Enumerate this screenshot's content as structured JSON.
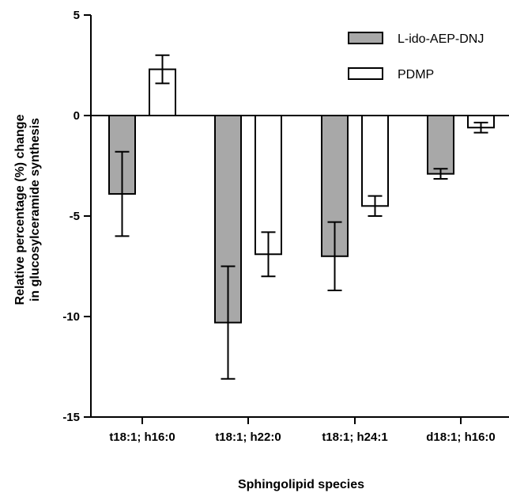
{
  "chart_data": {
    "type": "bar",
    "xlabel": "Sphingolipid species",
    "ylabel_lines": [
      "Relative percentage (%) change",
      "in glucosylceramide synthesis"
    ],
    "categories": [
      "t18:1; h16:0",
      "t18:1; h22:0",
      "t18:1; h24:1",
      "d18:1; h16:0"
    ],
    "ylim": [
      -15,
      5
    ],
    "yticks": [
      5,
      0,
      -5,
      -10,
      -15
    ],
    "grid": false,
    "legend_position": "top-right",
    "series": [
      {
        "name": "L-ido-AEP-DNJ",
        "color": "#a8a8a8",
        "values": [
          -3.9,
          -10.3,
          -7.0,
          -2.9
        ],
        "errors": [
          2.1,
          2.8,
          1.7,
          0.25
        ]
      },
      {
        "name": "PDMP",
        "color": "#ffffff",
        "values": [
          2.3,
          -6.9,
          -4.5,
          -0.6
        ],
        "errors": [
          0.7,
          1.1,
          0.5,
          0.25
        ]
      }
    ]
  }
}
